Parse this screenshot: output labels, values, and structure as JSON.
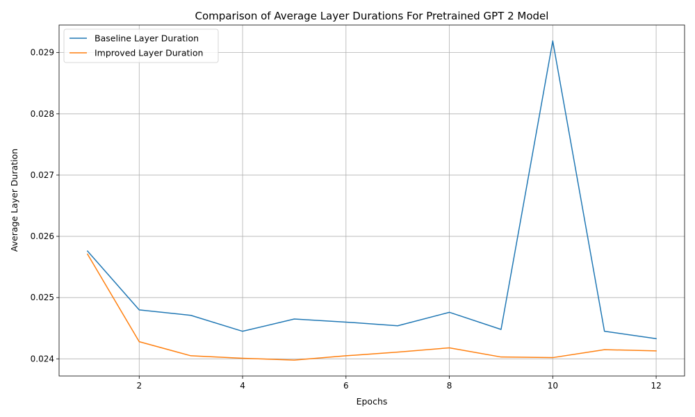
{
  "chart_data": {
    "type": "line",
    "title": "Comparison of Average Layer Durations For Pretrained GPT 2 Model",
    "xlabel": "Epochs",
    "ylabel": "Average Layer Duration",
    "x": [
      1,
      2,
      3,
      4,
      5,
      6,
      7,
      8,
      9,
      10,
      11,
      12
    ],
    "xlim": [
      0.45,
      12.55
    ],
    "ylim": [
      0.02372,
      0.02945
    ],
    "xticks": [
      2,
      4,
      6,
      8,
      10,
      12
    ],
    "yticks": [
      0.024,
      0.025,
      0.026,
      0.027,
      0.028,
      0.029
    ],
    "ytick_labels": [
      "0.024",
      "0.025",
      "0.026",
      "0.027",
      "0.028",
      "0.029"
    ],
    "grid": true,
    "legend_position": "top-left",
    "series": [
      {
        "name": "Baseline Layer Duration",
        "color": "#1f77b4",
        "values": [
          0.02576,
          0.0248,
          0.02471,
          0.02445,
          0.02465,
          0.0246,
          0.02454,
          0.02476,
          0.02448,
          0.02919,
          0.02445,
          0.02433
        ]
      },
      {
        "name": "Improved Layer Duration",
        "color": "#ff7f0e",
        "values": [
          0.02571,
          0.02428,
          0.02405,
          0.02401,
          0.02398,
          0.02405,
          0.02411,
          0.02418,
          0.02403,
          0.02402,
          0.02415,
          0.02413
        ]
      }
    ]
  }
}
